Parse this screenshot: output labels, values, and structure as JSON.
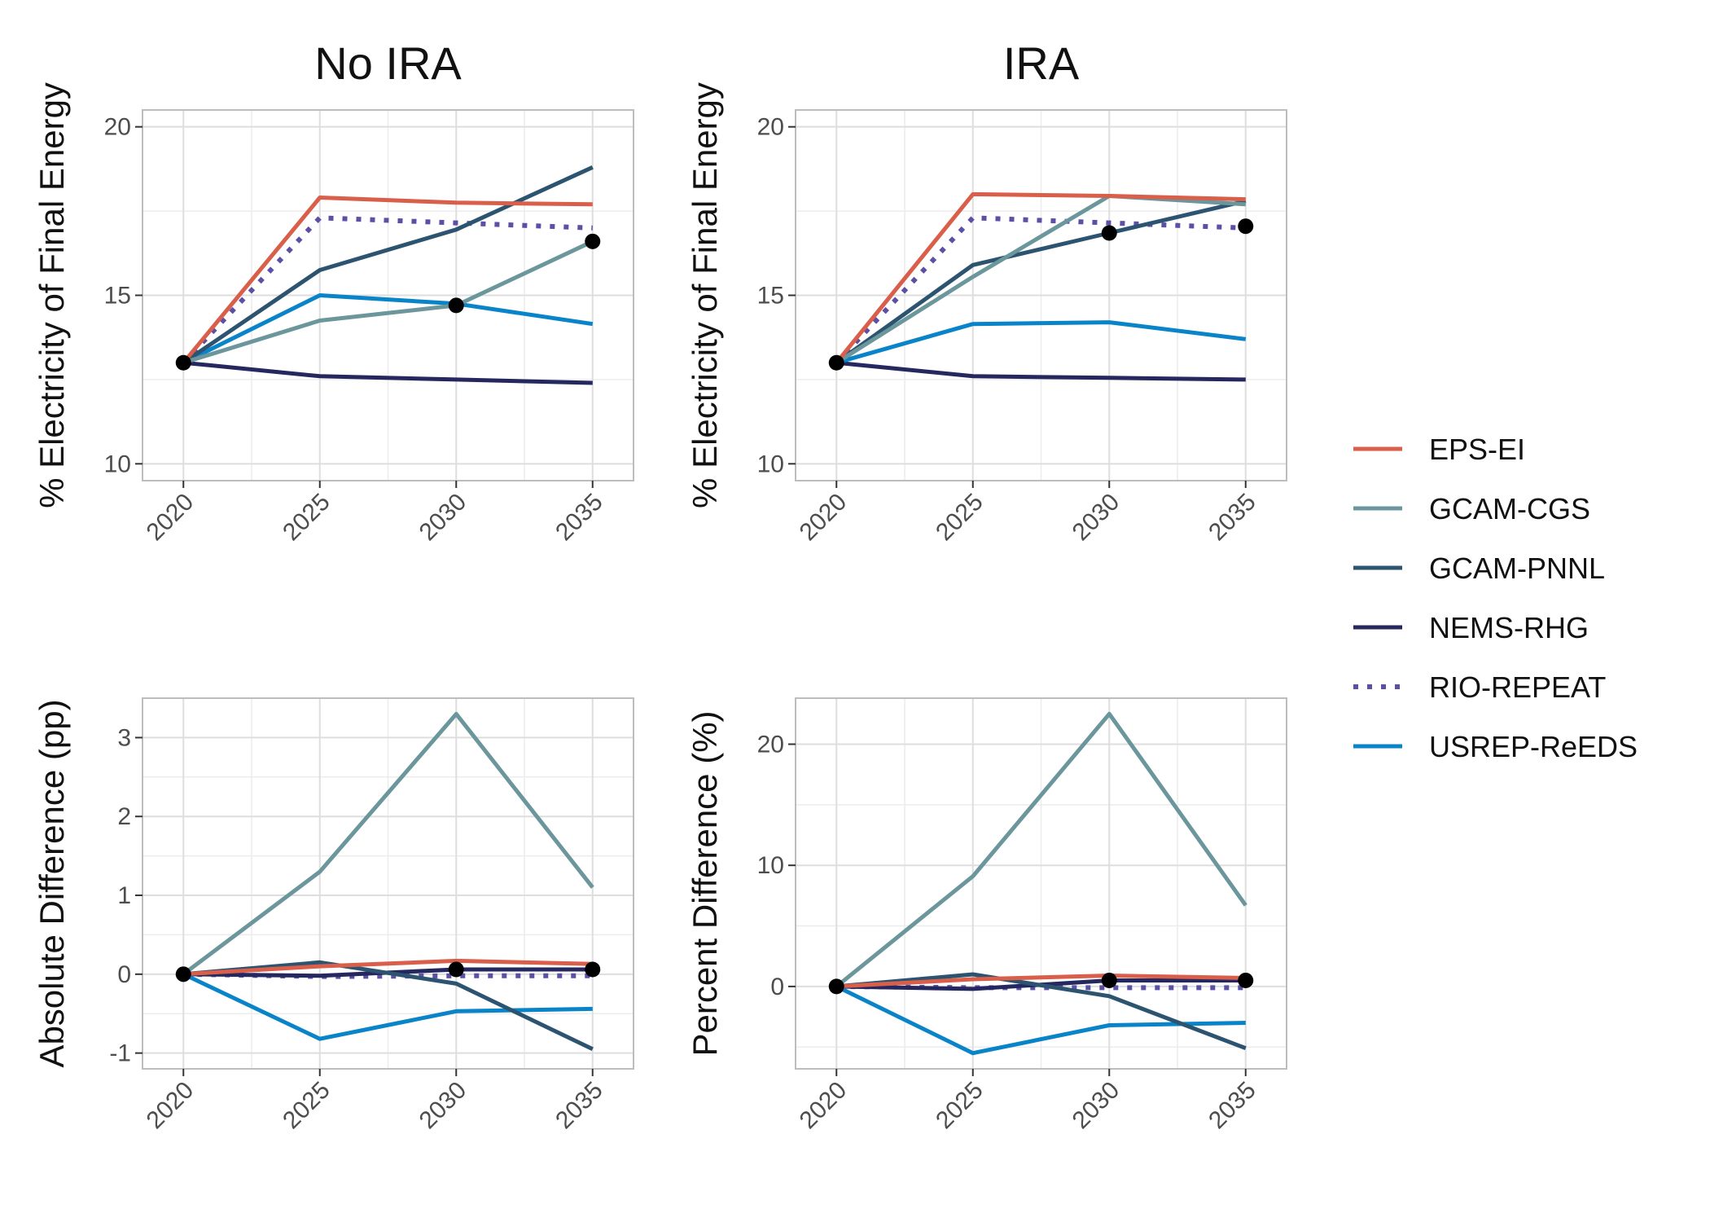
{
  "chart_data": [
    {
      "type": "line",
      "title": "No IRA",
      "xlabel": "",
      "ylabel": "% Electricity of Final Energy",
      "x": [
        2020,
        2025,
        2030,
        2035
      ],
      "xticks": [
        "2020",
        "2025",
        "2030",
        "2035"
      ],
      "yticks": [
        "10",
        "15",
        "20"
      ],
      "ylim": [
        9.5,
        20.5
      ],
      "grid": true,
      "series": [
        {
          "name": "EPS-EI",
          "values": [
            13.0,
            17.9,
            17.75,
            17.7
          ]
        },
        {
          "name": "GCAM-CGS",
          "values": [
            13.0,
            14.25,
            14.7,
            16.6
          ]
        },
        {
          "name": "GCAM-PNNL",
          "values": [
            13.0,
            15.75,
            16.95,
            18.8
          ]
        },
        {
          "name": "NEMS-RHG",
          "values": [
            13.0,
            12.6,
            12.5,
            12.4
          ]
        },
        {
          "name": "RIO-REPEAT",
          "values": [
            13.0,
            17.3,
            17.15,
            17.0
          ]
        },
        {
          "name": "USREP-ReEDS",
          "values": [
            13.0,
            15.0,
            14.75,
            14.15
          ]
        }
      ],
      "points": [
        {
          "x": 2020,
          "y": 13.0
        },
        {
          "x": 2030,
          "y": 14.7
        },
        {
          "x": 2035,
          "y": 16.6
        }
      ]
    },
    {
      "type": "line",
      "title": "IRA",
      "xlabel": "",
      "ylabel": "% Electricity of Final Energy",
      "x": [
        2020,
        2025,
        2030,
        2035
      ],
      "xticks": [
        "2020",
        "2025",
        "2030",
        "2035"
      ],
      "yticks": [
        "10",
        "15",
        "20"
      ],
      "ylim": [
        9.5,
        20.5
      ],
      "grid": true,
      "series": [
        {
          "name": "EPS-EI",
          "values": [
            13.0,
            18.0,
            17.95,
            17.85
          ]
        },
        {
          "name": "GCAM-CGS",
          "values": [
            13.0,
            15.55,
            17.95,
            17.7
          ]
        },
        {
          "name": "GCAM-PNNL",
          "values": [
            13.0,
            15.9,
            16.85,
            17.8
          ]
        },
        {
          "name": "NEMS-RHG",
          "values": [
            13.0,
            12.6,
            12.55,
            12.5
          ]
        },
        {
          "name": "RIO-REPEAT",
          "values": [
            13.0,
            17.3,
            17.15,
            17.0
          ]
        },
        {
          "name": "USREP-ReEDS",
          "values": [
            13.0,
            14.15,
            14.2,
            13.7
          ]
        }
      ],
      "points": [
        {
          "x": 2020,
          "y": 13.0
        },
        {
          "x": 2030,
          "y": 16.85
        },
        {
          "x": 2035,
          "y": 17.05
        }
      ]
    },
    {
      "type": "line",
      "title": "",
      "xlabel": "",
      "ylabel": "Absolute Difference (pp)",
      "x": [
        2020,
        2025,
        2030,
        2035
      ],
      "xticks": [
        "2020",
        "2025",
        "2030",
        "2035"
      ],
      "yticks": [
        "-1",
        "0",
        "1",
        "2",
        "3"
      ],
      "ylim": [
        -1.2,
        3.5
      ],
      "grid": true,
      "series": [
        {
          "name": "EPS-EI",
          "values": [
            0,
            0.1,
            0.17,
            0.13
          ]
        },
        {
          "name": "GCAM-CGS",
          "values": [
            0,
            1.3,
            3.3,
            1.1
          ]
        },
        {
          "name": "GCAM-PNNL",
          "values": [
            0,
            0.15,
            -0.12,
            -0.95
          ]
        },
        {
          "name": "NEMS-RHG",
          "values": [
            0,
            -0.02,
            0.06,
            0.06
          ]
        },
        {
          "name": "RIO-REPEAT",
          "values": [
            0,
            -0.03,
            -0.02,
            -0.02
          ]
        },
        {
          "name": "USREP-ReEDS",
          "values": [
            0,
            -0.82,
            -0.47,
            -0.44
          ]
        }
      ],
      "points": [
        {
          "x": 2020,
          "y": 0
        },
        {
          "x": 2030,
          "y": 0.06
        },
        {
          "x": 2035,
          "y": 0.06
        }
      ]
    },
    {
      "type": "line",
      "title": "",
      "xlabel": "",
      "ylabel": "Percent Difference (%)",
      "x": [
        2020,
        2025,
        2030,
        2035
      ],
      "xticks": [
        "2020",
        "2025",
        "2030",
        "2035"
      ],
      "yticks": [
        "0",
        "10",
        "20"
      ],
      "ylim": [
        -6.8,
        23.8
      ],
      "grid": true,
      "series": [
        {
          "name": "EPS-EI",
          "values": [
            0,
            0.6,
            0.9,
            0.7
          ]
        },
        {
          "name": "GCAM-CGS",
          "values": [
            0,
            9.1,
            22.5,
            6.7
          ]
        },
        {
          "name": "GCAM-PNNL",
          "values": [
            0,
            1.0,
            -0.8,
            -5.1
          ]
        },
        {
          "name": "NEMS-RHG",
          "values": [
            0,
            -0.2,
            0.5,
            0.5
          ]
        },
        {
          "name": "RIO-REPEAT",
          "values": [
            0,
            -0.1,
            -0.1,
            -0.1
          ]
        },
        {
          "name": "USREP-ReEDS",
          "values": [
            0,
            -5.5,
            -3.2,
            -3.0
          ]
        }
      ],
      "points": [
        {
          "x": 2020,
          "y": 0
        },
        {
          "x": 2030,
          "y": 0.5
        },
        {
          "x": 2035,
          "y": 0.5
        }
      ]
    }
  ],
  "legend": {
    "placement": "right",
    "items": [
      {
        "name": "EPS-EI",
        "color": "#d95f4b",
        "dash": "solid"
      },
      {
        "name": "GCAM-CGS",
        "color": "#6a969c",
        "dash": "solid"
      },
      {
        "name": "GCAM-PNNL",
        "color": "#2c5470",
        "dash": "solid"
      },
      {
        "name": "NEMS-RHG",
        "color": "#25285e",
        "dash": "solid"
      },
      {
        "name": "RIO-REPEAT",
        "color": "#5b4fa6",
        "dash": "dotted"
      },
      {
        "name": "USREP-ReEDS",
        "color": "#0a84c8",
        "dash": "solid"
      }
    ]
  }
}
